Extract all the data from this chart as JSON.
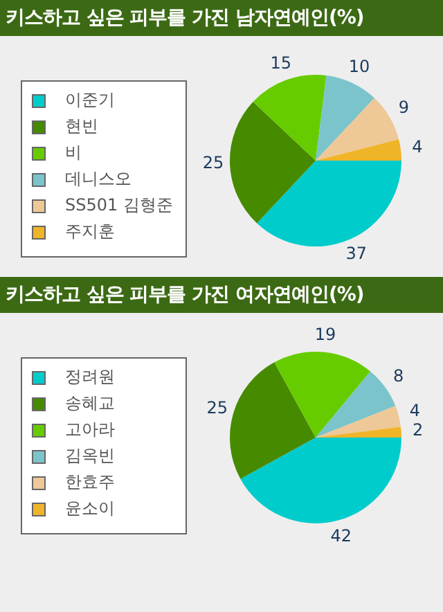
{
  "chart_data": [
    {
      "type": "pie",
      "title": "키스하고 싶은 피부를 가진 남자연예인(%)",
      "categories": [
        "이준기",
        "현빈",
        "비",
        "데니스오",
        "SS501 김형준",
        "주지훈"
      ],
      "values": [
        37,
        25,
        15,
        10,
        9,
        4
      ],
      "colors": [
        "#00cccc",
        "#468a00",
        "#66cc00",
        "#7cc4cc",
        "#eec896",
        "#f0b428"
      ],
      "data_labels": true,
      "legend": "left"
    },
    {
      "type": "pie",
      "title": "키스하고 싶은 피부를 가진 여자연예인(%)",
      "categories": [
        "정려원",
        "송혜교",
        "고아라",
        "김옥빈",
        "한효주",
        "윤소이"
      ],
      "values": [
        42,
        25,
        19,
        8,
        4,
        2
      ],
      "colors": [
        "#00cccc",
        "#468a00",
        "#66cc00",
        "#7cc4cc",
        "#eec896",
        "#f0b428"
      ],
      "data_labels": true,
      "legend": "left"
    }
  ]
}
